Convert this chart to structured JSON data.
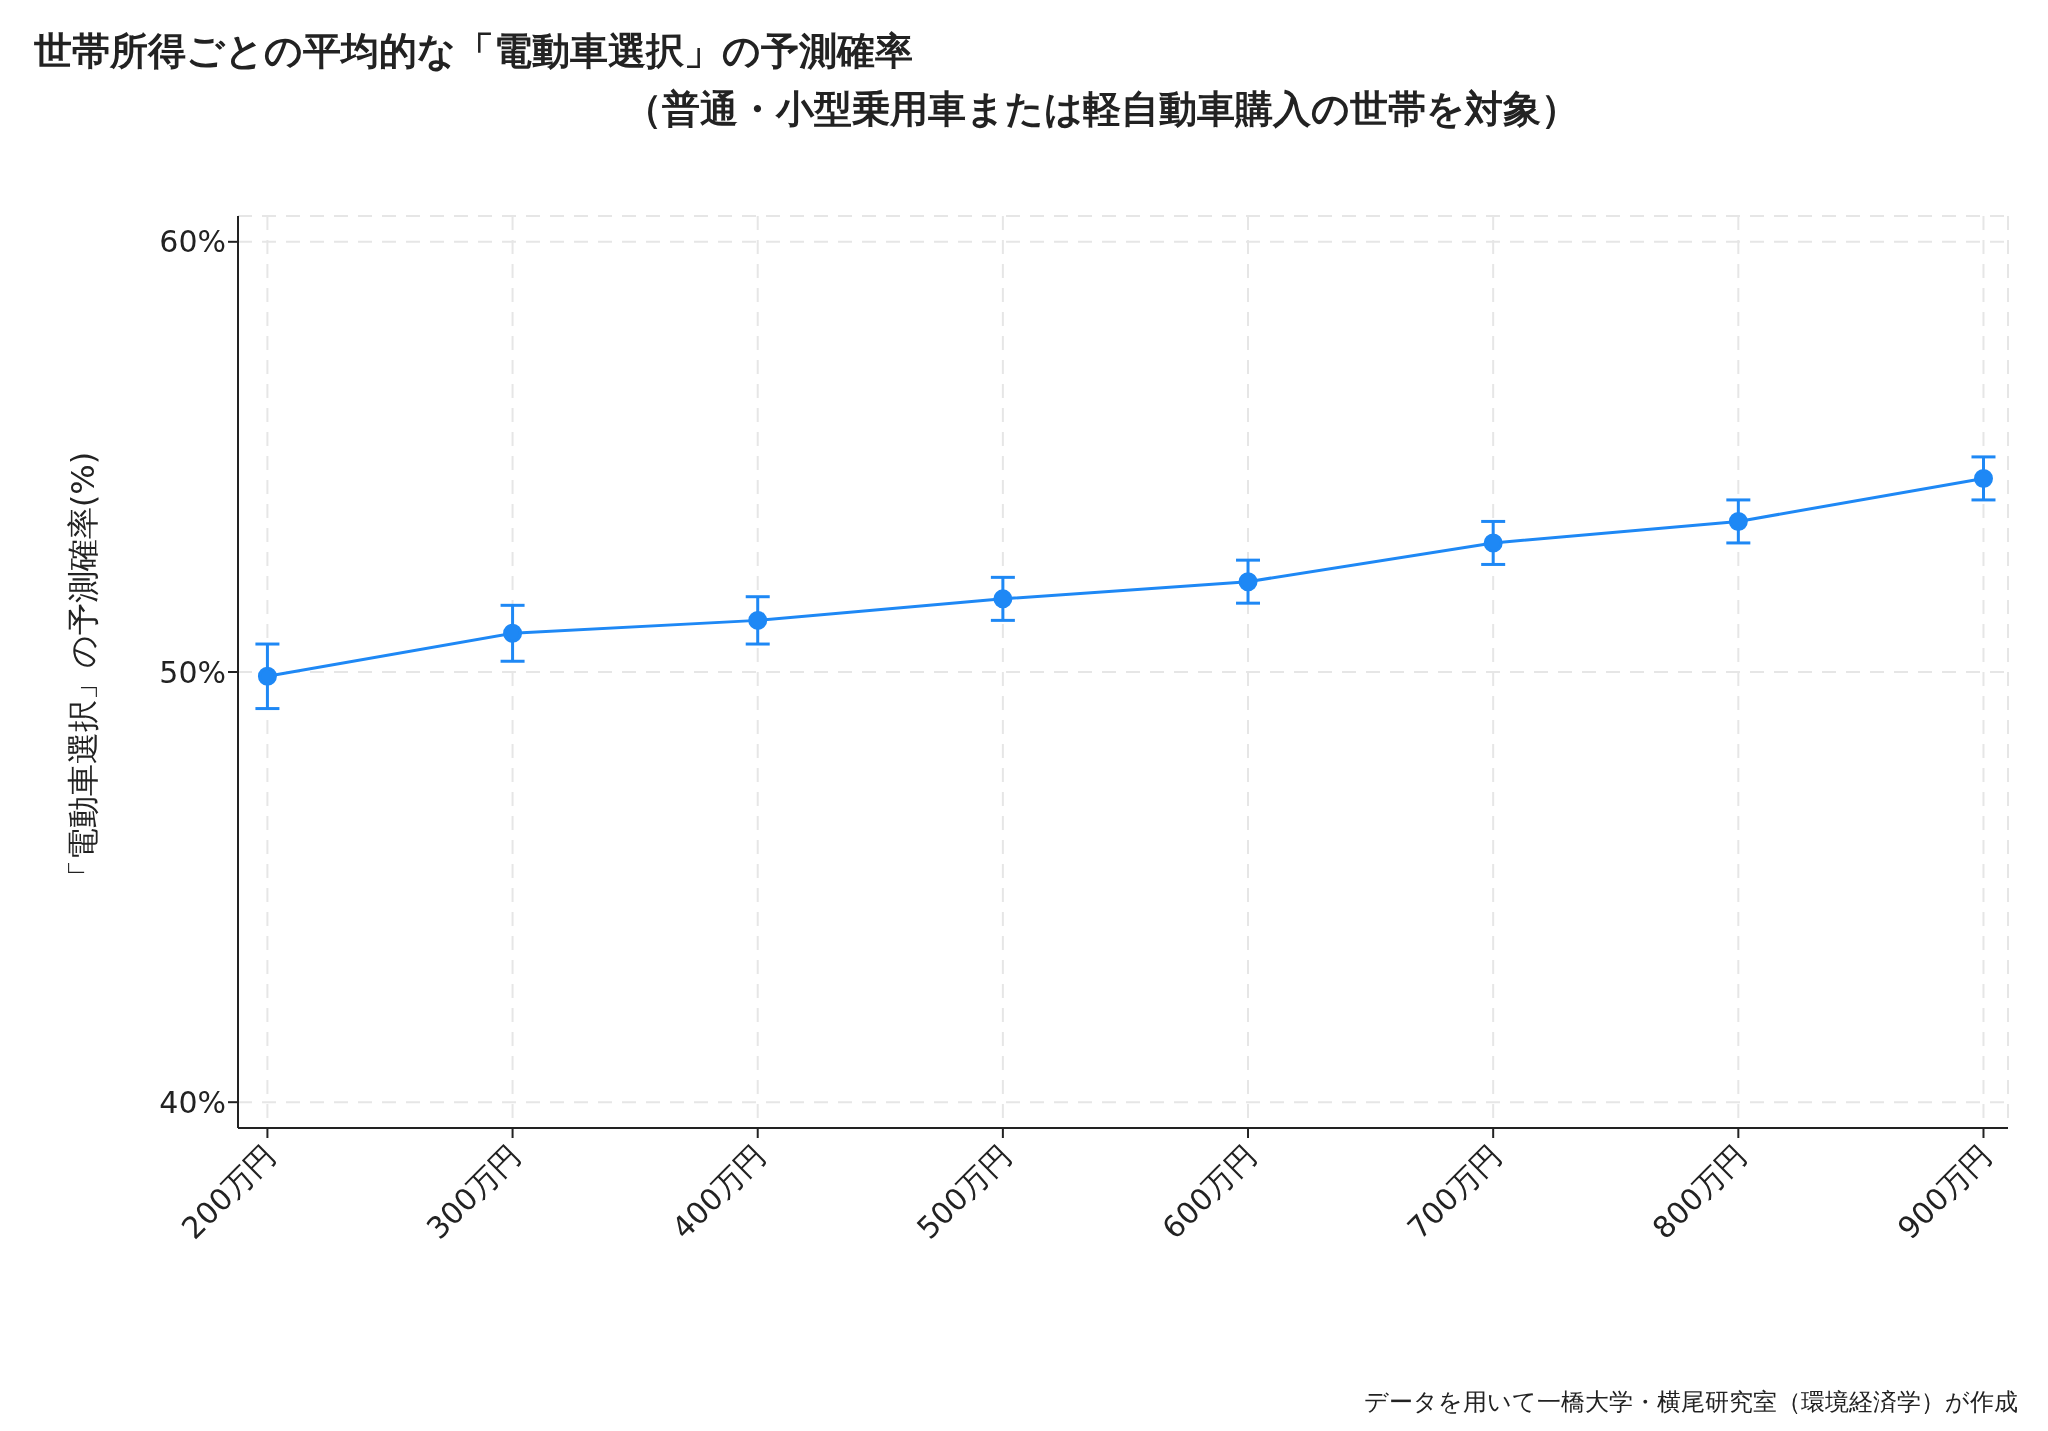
{
  "chart_data": {
    "type": "line",
    "title": "世帯所得ごとの平均的な「電動車選択」の予測確率",
    "subtitle": "（普通・小型乗用車または軽自動車購入の世帯を対象）",
    "ylabel": "「電動車選択」の予測確率(%)",
    "categories": [
      "200万円",
      "300万円",
      "400万円",
      "500万円",
      "600万円",
      "700万円",
      "800万円",
      "900万円"
    ],
    "series": [
      {
        "color": "#1e88f5",
        "values": [
          49.9,
          50.9,
          51.2,
          51.7,
          52.1,
          53.0,
          53.5,
          54.5
        ],
        "errors": [
          0.75,
          0.65,
          0.55,
          0.5,
          0.5,
          0.5,
          0.5,
          0.5
        ]
      }
    ],
    "ylim": [
      39.4,
      60.6
    ],
    "yticks": [
      {
        "value": 40,
        "label": "40%"
      },
      {
        "value": 50,
        "label": "50%"
      },
      {
        "value": 60,
        "label": "60%"
      }
    ],
    "grid": true,
    "marker": "circle",
    "line_style": "solid",
    "annotations": [
      "データを用いて一橋大学・横尾研究室（環境経済学）が作成"
    ]
  }
}
